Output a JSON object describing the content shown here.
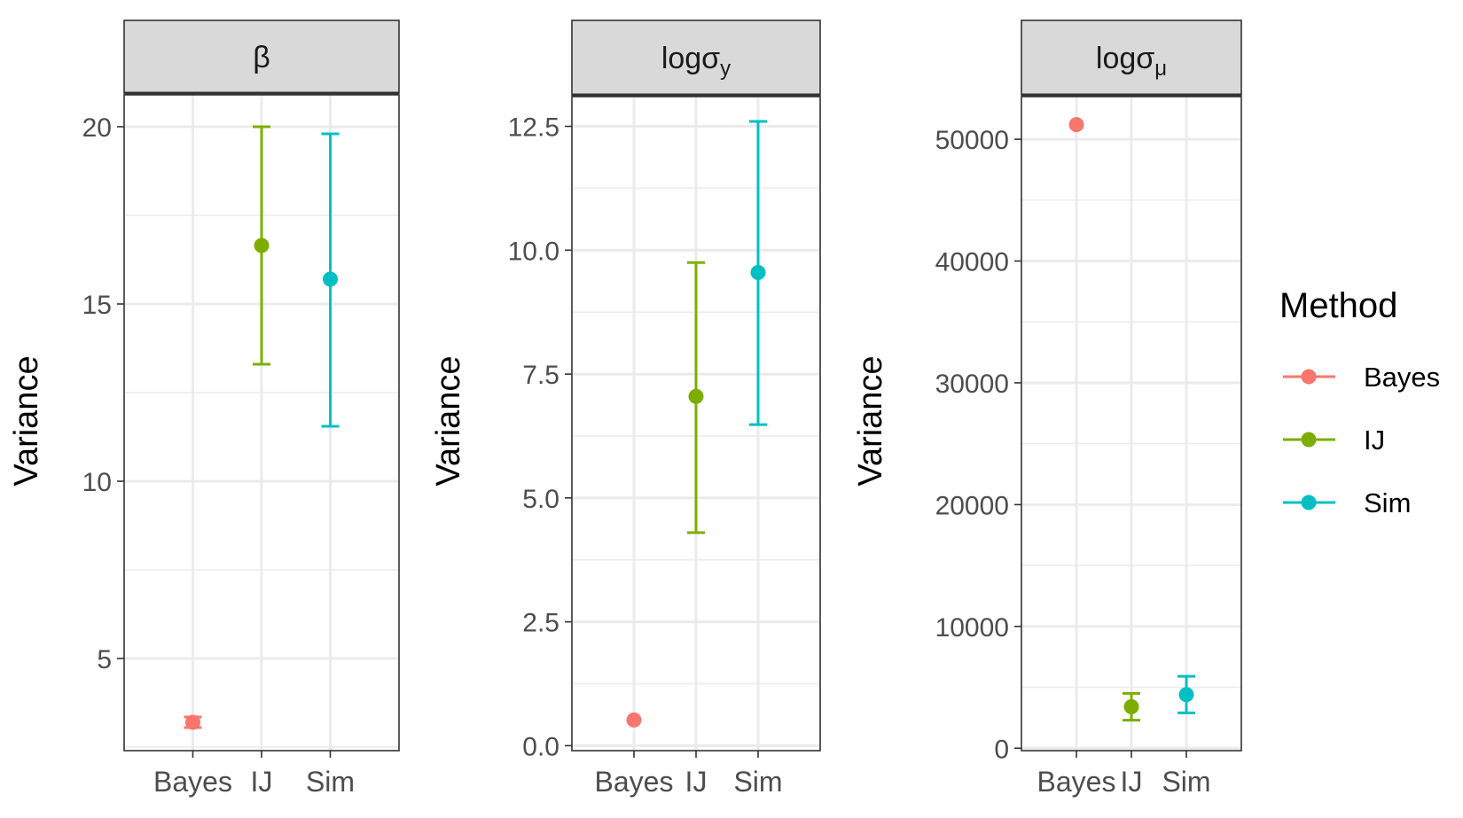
{
  "chart_data": [
    {
      "type": "errorbar",
      "panel": {
        "symbol": "β",
        "sub": ""
      },
      "ylabel": "Variance",
      "categories": [
        "Bayes",
        "IJ",
        "Sim"
      ],
      "series": [
        {
          "name": "Bayes",
          "x": "Bayes",
          "value": 3.2,
          "lower": 3.05,
          "upper": 3.35
        },
        {
          "name": "IJ",
          "x": "IJ",
          "value": 16.65,
          "lower": 13.3,
          "upper": 20.0
        },
        {
          "name": "Sim",
          "x": "Sim",
          "value": 15.7,
          "lower": 11.55,
          "upper": 19.8
        }
      ],
      "yticks": [
        5,
        10,
        15,
        20
      ],
      "ytick_labels": [
        "5",
        "10",
        "15",
        "20"
      ],
      "ylim": [
        2.4,
        20.9
      ]
    },
    {
      "type": "errorbar",
      "panel": {
        "symbol": "logσ",
        "sub": "y"
      },
      "ylabel": "Variance",
      "categories": [
        "Bayes",
        "IJ",
        "Sim"
      ],
      "series": [
        {
          "name": "Bayes",
          "x": "Bayes",
          "value": 0.52,
          "lower": 0.52,
          "upper": 0.52
        },
        {
          "name": "IJ",
          "x": "IJ",
          "value": 7.05,
          "lower": 4.3,
          "upper": 9.75
        },
        {
          "name": "Sim",
          "x": "Sim",
          "value": 9.55,
          "lower": 6.48,
          "upper": 12.6
        }
      ],
      "yticks": [
        0,
        2.5,
        5,
        7.5,
        10,
        12.5
      ],
      "ytick_labels": [
        "0.0",
        "2.5",
        "5.0",
        "7.5",
        "10.0",
        "12.5"
      ],
      "ylim": [
        -0.1,
        13.1
      ]
    },
    {
      "type": "errorbar",
      "panel": {
        "symbol": "logσ",
        "sub": "μ"
      },
      "ylabel": "Variance",
      "categories": [
        "Bayes",
        "IJ",
        "Sim"
      ],
      "series": [
        {
          "name": "Bayes",
          "x": "Bayes",
          "value": 51200,
          "lower": 51200,
          "upper": 51200
        },
        {
          "name": "IJ",
          "x": "IJ",
          "value": 3400,
          "lower": 2300,
          "upper": 4500
        },
        {
          "name": "Sim",
          "x": "Sim",
          "value": 4400,
          "lower": 2900,
          "upper": 5900
        }
      ],
      "yticks": [
        0,
        10000,
        20000,
        30000,
        40000,
        50000
      ],
      "ytick_labels": [
        "0",
        "10000",
        "20000",
        "30000",
        "40000",
        "50000"
      ],
      "ylim": [
        -200,
        53500
      ]
    }
  ],
  "legend": {
    "title": "Method",
    "placement": "right",
    "entries": [
      {
        "name": "Bayes",
        "color": "#F8766D"
      },
      {
        "name": "IJ",
        "color": "#7CAE00"
      },
      {
        "name": "Sim",
        "color": "#00BFC4"
      }
    ]
  },
  "colors": {
    "Bayes": "#F8766D",
    "IJ": "#7CAE00",
    "Sim": "#00BFC4",
    "strip_fill": "#D9D9D9",
    "grid": "#EBEBEB"
  }
}
